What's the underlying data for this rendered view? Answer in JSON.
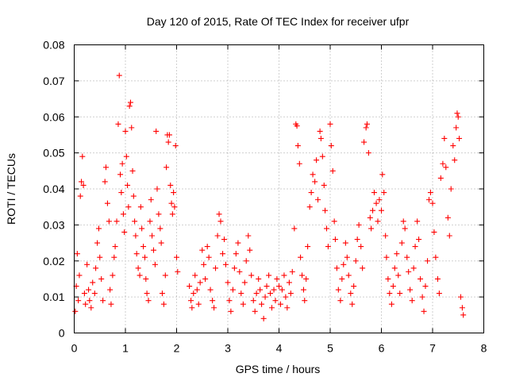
{
  "chart_data": {
    "type": "scatter",
    "title": "Day 120 of 2015, Rate Of TEC Index for receiver ufpr",
    "xlabel": "GPS time / hours",
    "ylabel": "ROTI / TECUs",
    "xlim": [
      0,
      8
    ],
    "ylim": [
      0,
      0.08
    ],
    "grid": true,
    "marker": "plus",
    "series_color": "#ff0000",
    "x_ticks": [
      {
        "value": 0,
        "label": "0"
      },
      {
        "value": 1,
        "label": "1"
      },
      {
        "value": 2,
        "label": "2"
      },
      {
        "value": 3,
        "label": "3"
      },
      {
        "value": 4,
        "label": "4"
      },
      {
        "value": 5,
        "label": "5"
      },
      {
        "value": 6,
        "label": "6"
      },
      {
        "value": 7,
        "label": "7"
      },
      {
        "value": 8,
        "label": "8"
      }
    ],
    "y_ticks": [
      {
        "value": 0,
        "label": "0"
      },
      {
        "value": 0.01,
        "label": "0.01"
      },
      {
        "value": 0.02,
        "label": "0.02"
      },
      {
        "value": 0.03,
        "label": "0.03"
      },
      {
        "value": 0.04,
        "label": "0.04"
      },
      {
        "value": 0.05,
        "label": "0.05"
      },
      {
        "value": 0.06,
        "label": "0.06"
      },
      {
        "value": 0.07,
        "label": "0.07"
      },
      {
        "value": 0.08,
        "label": "0.08"
      }
    ],
    "series": [
      {
        "name": "ROTI",
        "points": [
          [
            0.02,
            0.006
          ],
          [
            0.04,
            0.013
          ],
          [
            0.06,
            0.022
          ],
          [
            0.08,
            0.009
          ],
          [
            0.1,
            0.016
          ],
          [
            0.12,
            0.038
          ],
          [
            0.14,
            0.042
          ],
          [
            0.16,
            0.049
          ],
          [
            0.18,
            0.041
          ],
          [
            0.2,
            0.011
          ],
          [
            0.22,
            0.008
          ],
          [
            0.25,
            0.019
          ],
          [
            0.28,
            0.012
          ],
          [
            0.3,
            0.009
          ],
          [
            0.33,
            0.007
          ],
          [
            0.36,
            0.014
          ],
          [
            0.4,
            0.011
          ],
          [
            0.42,
            0.018
          ],
          [
            0.45,
            0.025
          ],
          [
            0.48,
            0.029
          ],
          [
            0.5,
            0.021
          ],
          [
            0.53,
            0.015
          ],
          [
            0.56,
            0.009
          ],
          [
            0.6,
            0.042
          ],
          [
            0.62,
            0.046
          ],
          [
            0.65,
            0.036
          ],
          [
            0.68,
            0.031
          ],
          [
            0.7,
            0.012
          ],
          [
            0.72,
            0.008
          ],
          [
            0.75,
            0.016
          ],
          [
            0.78,
            0.021
          ],
          [
            0.8,
            0.024
          ],
          [
            0.83,
            0.031
          ],
          [
            0.86,
            0.058
          ],
          [
            0.88,
            0.0715
          ],
          [
            0.9,
            0.044
          ],
          [
            0.92,
            0.039
          ],
          [
            0.94,
            0.047
          ],
          [
            0.96,
            0.033
          ],
          [
            0.98,
            0.028
          ],
          [
            1.0,
            0.056
          ],
          [
            1.02,
            0.049
          ],
          [
            1.04,
            0.041
          ],
          [
            1.06,
            0.035
          ],
          [
            1.08,
            0.063
          ],
          [
            1.1,
            0.064
          ],
          [
            1.12,
            0.057
          ],
          [
            1.14,
            0.045
          ],
          [
            1.16,
            0.038
          ],
          [
            1.18,
            0.031
          ],
          [
            1.2,
            0.027
          ],
          [
            1.22,
            0.022
          ],
          [
            1.25,
            0.018
          ],
          [
            1.28,
            0.016
          ],
          [
            1.3,
            0.035
          ],
          [
            1.32,
            0.029
          ],
          [
            1.35,
            0.024
          ],
          [
            1.38,
            0.021
          ],
          [
            1.4,
            0.015
          ],
          [
            1.42,
            0.011
          ],
          [
            1.45,
            0.009
          ],
          [
            1.48,
            0.031
          ],
          [
            1.5,
            0.037
          ],
          [
            1.52,
            0.027
          ],
          [
            1.55,
            0.023
          ],
          [
            1.58,
            0.019
          ],
          [
            1.6,
            0.056
          ],
          [
            1.62,
            0.04
          ],
          [
            1.65,
            0.033
          ],
          [
            1.68,
            0.029
          ],
          [
            1.7,
            0.025
          ],
          [
            1.72,
            0.011
          ],
          [
            1.75,
            0.008
          ],
          [
            1.78,
            0.016
          ],
          [
            1.8,
            0.046
          ],
          [
            1.82,
            0.055
          ],
          [
            1.84,
            0.053
          ],
          [
            1.86,
            0.055
          ],
          [
            1.88,
            0.041
          ],
          [
            1.9,
            0.036
          ],
          [
            1.92,
            0.033
          ],
          [
            1.94,
            0.039
          ],
          [
            1.96,
            0.035
          ],
          [
            1.98,
            0.052
          ],
          [
            2.0,
            0.021
          ],
          [
            2.02,
            0.017
          ],
          [
            2.25,
            0.013
          ],
          [
            2.28,
            0.009
          ],
          [
            2.3,
            0.007
          ],
          [
            2.33,
            0.011
          ],
          [
            2.36,
            0.016
          ],
          [
            2.4,
            0.012
          ],
          [
            2.43,
            0.008
          ],
          [
            2.46,
            0.014
          ],
          [
            2.5,
            0.023
          ],
          [
            2.53,
            0.019
          ],
          [
            2.56,
            0.015
          ],
          [
            2.6,
            0.024
          ],
          [
            2.63,
            0.021
          ],
          [
            2.66,
            0.012
          ],
          [
            2.7,
            0.009
          ],
          [
            2.73,
            0.007
          ],
          [
            2.76,
            0.018
          ],
          [
            2.8,
            0.027
          ],
          [
            2.83,
            0.033
          ],
          [
            2.86,
            0.031
          ],
          [
            2.9,
            0.022
          ],
          [
            2.93,
            0.026
          ],
          [
            2.96,
            0.019
          ],
          [
            3.0,
            0.014
          ],
          [
            3.03,
            0.009
          ],
          [
            3.06,
            0.006
          ],
          [
            3.1,
            0.012
          ],
          [
            3.13,
            0.018
          ],
          [
            3.16,
            0.022
          ],
          [
            3.2,
            0.025
          ],
          [
            3.23,
            0.017
          ],
          [
            3.26,
            0.011
          ],
          [
            3.3,
            0.008
          ],
          [
            3.33,
            0.014
          ],
          [
            3.36,
            0.02
          ],
          [
            3.4,
            0.027
          ],
          [
            3.43,
            0.023
          ],
          [
            3.46,
            0.016
          ],
          [
            3.5,
            0.009
          ],
          [
            3.53,
            0.006
          ],
          [
            3.56,
            0.011
          ],
          [
            3.6,
            0.015
          ],
          [
            3.63,
            0.012
          ],
          [
            3.66,
            0.008
          ],
          [
            3.7,
            0.004
          ],
          [
            3.73,
            0.01
          ],
          [
            3.76,
            0.013
          ],
          [
            3.8,
            0.016
          ],
          [
            3.83,
            0.011
          ],
          [
            3.86,
            0.007
          ],
          [
            3.9,
            0.012
          ],
          [
            3.93,
            0.009
          ],
          [
            3.96,
            0.015
          ],
          [
            4.0,
            0.013
          ],
          [
            4.03,
            0.008
          ],
          [
            4.06,
            0.012
          ],
          [
            4.1,
            0.016
          ],
          [
            4.13,
            0.01
          ],
          [
            4.16,
            0.007
          ],
          [
            4.2,
            0.014
          ],
          [
            4.23,
            0.011
          ],
          [
            4.26,
            0.017
          ],
          [
            4.3,
            0.029
          ],
          [
            4.33,
            0.058
          ],
          [
            4.35,
            0.0575
          ],
          [
            4.37,
            0.052
          ],
          [
            4.4,
            0.047
          ],
          [
            4.42,
            0.021
          ],
          [
            4.45,
            0.016
          ],
          [
            4.48,
            0.012
          ],
          [
            4.5,
            0.009
          ],
          [
            4.53,
            0.015
          ],
          [
            4.56,
            0.024
          ],
          [
            4.6,
            0.035
          ],
          [
            4.63,
            0.039
          ],
          [
            4.66,
            0.044
          ],
          [
            4.7,
            0.042
          ],
          [
            4.73,
            0.048
          ],
          [
            4.76,
            0.037
          ],
          [
            4.8,
            0.056
          ],
          [
            4.82,
            0.054
          ],
          [
            4.85,
            0.049
          ],
          [
            4.88,
            0.041
          ],
          [
            4.9,
            0.034
          ],
          [
            4.93,
            0.029
          ],
          [
            4.96,
            0.024
          ],
          [
            5.0,
            0.058
          ],
          [
            5.02,
            0.052
          ],
          [
            5.05,
            0.045
          ],
          [
            5.08,
            0.031
          ],
          [
            5.1,
            0.026
          ],
          [
            5.13,
            0.018
          ],
          [
            5.16,
            0.012
          ],
          [
            5.2,
            0.009
          ],
          [
            5.23,
            0.015
          ],
          [
            5.26,
            0.019
          ],
          [
            5.3,
            0.025
          ],
          [
            5.33,
            0.021
          ],
          [
            5.36,
            0.016
          ],
          [
            5.4,
            0.011
          ],
          [
            5.43,
            0.008
          ],
          [
            5.46,
            0.013
          ],
          [
            5.5,
            0.02
          ],
          [
            5.53,
            0.026
          ],
          [
            5.56,
            0.03
          ],
          [
            5.6,
            0.024
          ],
          [
            5.63,
            0.018
          ],
          [
            5.66,
            0.053
          ],
          [
            5.7,
            0.057
          ],
          [
            5.72,
            0.058
          ],
          [
            5.75,
            0.05
          ],
          [
            5.78,
            0.032
          ],
          [
            5.8,
            0.029
          ],
          [
            5.83,
            0.034
          ],
          [
            5.86,
            0.039
          ],
          [
            5.9,
            0.036
          ],
          [
            5.93,
            0.031
          ],
          [
            5.96,
            0.037
          ],
          [
            6.0,
            0.034
          ],
          [
            6.02,
            0.044
          ],
          [
            6.05,
            0.039
          ],
          [
            6.08,
            0.027
          ],
          [
            6.1,
            0.021
          ],
          [
            6.13,
            0.015
          ],
          [
            6.16,
            0.011
          ],
          [
            6.2,
            0.008
          ],
          [
            6.23,
            0.013
          ],
          [
            6.26,
            0.018
          ],
          [
            6.3,
            0.022
          ],
          [
            6.33,
            0.016
          ],
          [
            6.36,
            0.011
          ],
          [
            6.4,
            0.025
          ],
          [
            6.43,
            0.031
          ],
          [
            6.46,
            0.029
          ],
          [
            6.5,
            0.021
          ],
          [
            6.53,
            0.017
          ],
          [
            6.56,
            0.012
          ],
          [
            6.6,
            0.009
          ],
          [
            6.63,
            0.018
          ],
          [
            6.66,
            0.024
          ],
          [
            6.7,
            0.031
          ],
          [
            6.73,
            0.026
          ],
          [
            6.76,
            0.015
          ],
          [
            6.8,
            0.01
          ],
          [
            6.83,
            0.006
          ],
          [
            6.86,
            0.013
          ],
          [
            6.9,
            0.02
          ],
          [
            6.93,
            0.037
          ],
          [
            6.96,
            0.039
          ],
          [
            7.0,
            0.036
          ],
          [
            7.03,
            0.028
          ],
          [
            7.06,
            0.021
          ],
          [
            7.1,
            0.015
          ],
          [
            7.13,
            0.011
          ],
          [
            7.16,
            0.043
          ],
          [
            7.2,
            0.047
          ],
          [
            7.23,
            0.054
          ],
          [
            7.26,
            0.046
          ],
          [
            7.3,
            0.032
          ],
          [
            7.33,
            0.027
          ],
          [
            7.36,
            0.04
          ],
          [
            7.4,
            0.052
          ],
          [
            7.43,
            0.048
          ],
          [
            7.46,
            0.057
          ],
          [
            7.48,
            0.061
          ],
          [
            7.5,
            0.06
          ],
          [
            7.52,
            0.054
          ],
          [
            7.55,
            0.01
          ],
          [
            7.58,
            0.007
          ],
          [
            7.6,
            0.005
          ]
        ]
      }
    ]
  }
}
